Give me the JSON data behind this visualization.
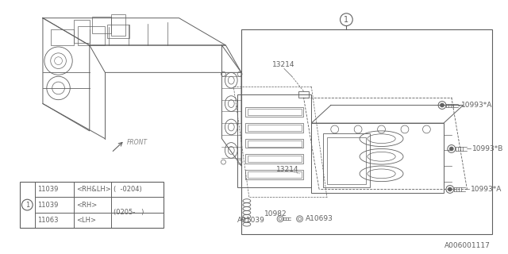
{
  "bg_color": "#ffffff",
  "line_color": "#606060",
  "watermark": "A006001117",
  "labels": {
    "13214_top": "13214",
    "13214_mid": "13214",
    "10993A_top": "10993*A",
    "10993B": "10993*B",
    "10993A_bot": "10993*A",
    "A91039": "A91039",
    "10982": "10982",
    "A10693": "A10693",
    "front": "FRONT"
  },
  "table": {
    "col1": [
      "11039",
      "11039",
      "11063"
    ],
    "col2": [
      "<RH&LH>",
      "<RH>",
      "<LH>"
    ],
    "col3_row0": "(  -0204)",
    "col3_span": "(0205-   )",
    "circle_label": "1"
  },
  "fontsize_label": 6.5,
  "fontsize_table": 6.0,
  "fontsize_watermark": 6.5
}
